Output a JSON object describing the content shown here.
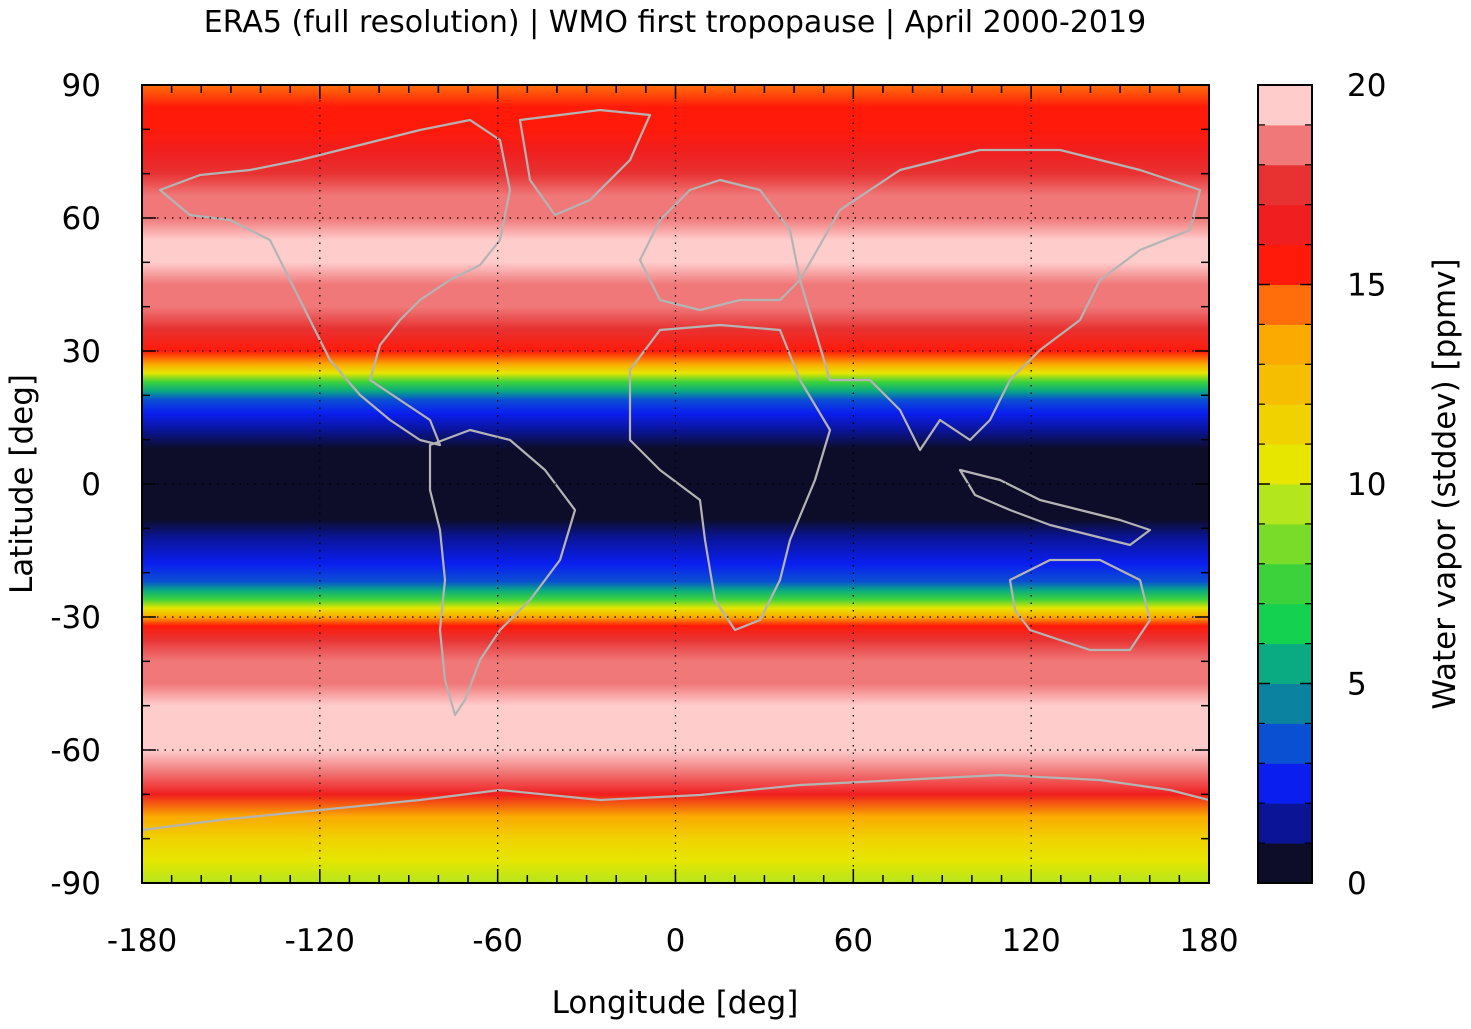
{
  "chart_data": {
    "type": "heatmap",
    "title": "ERA5 (full resolution) | WMO first tropopause | April 2000-2019",
    "xlabel": "Longitude [deg]",
    "ylabel": "Latitude [deg]",
    "colorbar_label": "Water vapor (stddev) [ppmv]",
    "xlim": [
      -180,
      180
    ],
    "ylim": [
      -90,
      90
    ],
    "x_ticks": [
      "-180",
      "-120",
      "-60",
      "0",
      "60",
      "120",
      "180"
    ],
    "y_ticks": [
      "-90",
      "-60",
      "-30",
      "0",
      "30",
      "60",
      "90"
    ],
    "colorbar_range": [
      0,
      20
    ],
    "colorbar_ticks": [
      "0",
      "5",
      "10",
      "15",
      "20"
    ],
    "colorbar_levels": [
      {
        "from": 0,
        "to": 1,
        "color": "#0d0d2a"
      },
      {
        "from": 1,
        "to": 2,
        "color": "#0a1495"
      },
      {
        "from": 2,
        "to": 3,
        "color": "#0a1ef0"
      },
      {
        "from": 3,
        "to": 4,
        "color": "#0a50d2"
      },
      {
        "from": 4,
        "to": 5,
        "color": "#0a82a0"
      },
      {
        "from": 5,
        "to": 6,
        "color": "#0aaa82"
      },
      {
        "from": 6,
        "to": 7,
        "color": "#14d250"
      },
      {
        "from": 7,
        "to": 8,
        "color": "#3cd23c"
      },
      {
        "from": 8,
        "to": 9,
        "color": "#78dc28"
      },
      {
        "from": 9,
        "to": 10,
        "color": "#b4e61e"
      },
      {
        "from": 10,
        "to": 11,
        "color": "#e6e600"
      },
      {
        "from": 11,
        "to": 12,
        "color": "#f0d200"
      },
      {
        "from": 12,
        "to": 13,
        "color": "#f5be00"
      },
      {
        "from": 13,
        "to": 14,
        "color": "#faaa00"
      },
      {
        "from": 14,
        "to": 15,
        "color": "#ff6e0a"
      },
      {
        "from": 15,
        "to": 16,
        "color": "#ff1a0a"
      },
      {
        "from": 16,
        "to": 17,
        "color": "#f01e1e"
      },
      {
        "from": 17,
        "to": 18,
        "color": "#e83232"
      },
      {
        "from": 18,
        "to": 19,
        "color": "#f07878"
      },
      {
        "from": 19,
        "to": 20,
        "color": "#ffcccc"
      }
    ],
    "zonal_profile": [
      {
        "lat": -90,
        "value": 9.5
      },
      {
        "lat": -85,
        "value": 10.0
      },
      {
        "lat": -80,
        "value": 11.0
      },
      {
        "lat": -75,
        "value": 13.5
      },
      {
        "lat": -70,
        "value": 16.5
      },
      {
        "lat": -65,
        "value": 18.5
      },
      {
        "lat": -60,
        "value": 19.5
      },
      {
        "lat": -55,
        "value": 19.5
      },
      {
        "lat": -50,
        "value": 19.0
      },
      {
        "lat": -45,
        "value": 18.5
      },
      {
        "lat": -40,
        "value": 18.0
      },
      {
        "lat": -35,
        "value": 17.0
      },
      {
        "lat": -32,
        "value": 15.5
      },
      {
        "lat": -30,
        "value": 13.0
      },
      {
        "lat": -28,
        "value": 10.5
      },
      {
        "lat": -26,
        "value": 7.5
      },
      {
        "lat": -24,
        "value": 5.0
      },
      {
        "lat": -22,
        "value": 3.0
      },
      {
        "lat": -18,
        "value": 2.0
      },
      {
        "lat": -12,
        "value": 1.5
      },
      {
        "lat": -8,
        "value": 0.5
      },
      {
        "lat": 0,
        "value": 0.5
      },
      {
        "lat": 8,
        "value": 0.5
      },
      {
        "lat": 12,
        "value": 1.5
      },
      {
        "lat": 16,
        "value": 2.0
      },
      {
        "lat": 19,
        "value": 3.0
      },
      {
        "lat": 21,
        "value": 5.0
      },
      {
        "lat": 23,
        "value": 7.5
      },
      {
        "lat": 25,
        "value": 10.5
      },
      {
        "lat": 27,
        "value": 13.0
      },
      {
        "lat": 30,
        "value": 15.5
      },
      {
        "lat": 35,
        "value": 17.5
      },
      {
        "lat": 40,
        "value": 18.5
      },
      {
        "lat": 45,
        "value": 18.5
      },
      {
        "lat": 50,
        "value": 19.0
      },
      {
        "lat": 55,
        "value": 19.0
      },
      {
        "lat": 60,
        "value": 18.5
      },
      {
        "lat": 65,
        "value": 18.0
      },
      {
        "lat": 70,
        "value": 17.0
      },
      {
        "lat": 75,
        "value": 16.0
      },
      {
        "lat": 80,
        "value": 15.5
      },
      {
        "lat": 85,
        "value": 15.0
      },
      {
        "lat": 90,
        "value": 14.5
      }
    ],
    "grid": true,
    "coastlines": true,
    "coastline_color": "#b4b4b4"
  }
}
